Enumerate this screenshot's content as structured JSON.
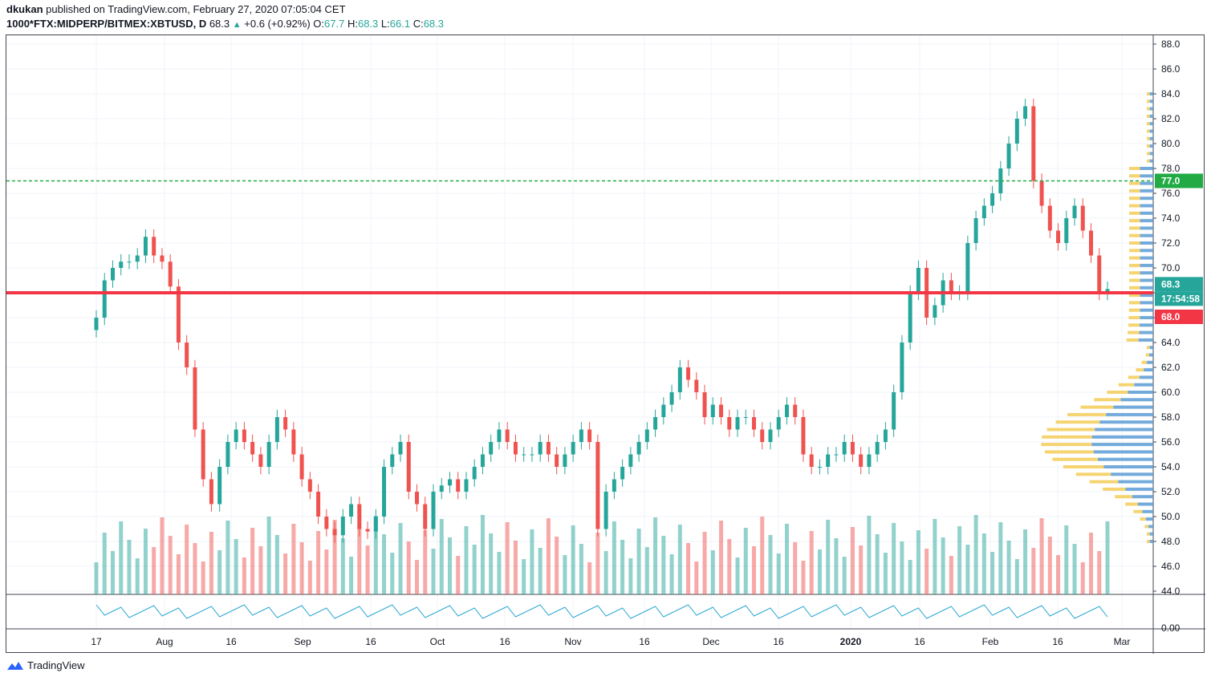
{
  "header": {
    "author": "dkukan",
    "published_text": "published on TradingView.com, February 27, 2020 07:05:04 CET",
    "symbol": "1000*FTX:MIDPERP/BITMEX:XBTUSD, D",
    "last": "68.3",
    "change": "+0.6 (+0.92%)",
    "o_label": "O:",
    "o_value": "67.7",
    "h_label": "H:",
    "h_value": "68.3",
    "l_label": "L:",
    "l_value": "66.1",
    "c_label": "C:",
    "c_value": "68.3"
  },
  "chart_data": {
    "type": "candlestick",
    "title": "",
    "ylim": [
      43,
      89
    ],
    "price_ticks": [
      "88.0",
      "86.0",
      "84.0",
      "82.0",
      "80.0",
      "78.0",
      "76.0",
      "74.0",
      "72.0",
      "70.0",
      "68.0",
      "66.0",
      "64.0",
      "62.0",
      "60.0",
      "58.0",
      "56.0",
      "54.0",
      "52.0",
      "50.0",
      "48.0",
      "46.0",
      "44.0"
    ],
    "indicator_ticks": [
      "0.00"
    ],
    "x_labels": [
      "17",
      "Aug",
      "16",
      "Sep",
      "16",
      "Oct",
      "16",
      "Nov",
      "16",
      "Dec",
      "16",
      "2020",
      "16",
      "Feb",
      "16",
      "Mar"
    ],
    "markers": {
      "last_price": "68.3",
      "countdown": "17:54:58",
      "support_level": "68.0",
      "resistance_level": "77.0"
    },
    "support_line": 68.0,
    "resistance_line": 77.0,
    "close_series": [
      66,
      69,
      70,
      70.5,
      70.5,
      71,
      72.5,
      71,
      70.5,
      68.5,
      64,
      62,
      57,
      53,
      51,
      54,
      56,
      57,
      56,
      55,
      54,
      56,
      58,
      57,
      55,
      53,
      52,
      50,
      49,
      48.5,
      50,
      51,
      49,
      48.8,
      50,
      54,
      55,
      56,
      52,
      51,
      49,
      52,
      52.5,
      53,
      52,
      53,
      54,
      55,
      56,
      57,
      56,
      55,
      55,
      55,
      56,
      55,
      54,
      55,
      56,
      57,
      56,
      49,
      52,
      53,
      54,
      55,
      56,
      57,
      58,
      59,
      60,
      62,
      61,
      60,
      58,
      59,
      58,
      57,
      58,
      58,
      57,
      56,
      57,
      58,
      59,
      58,
      55,
      54,
      54,
      55,
      55,
      56,
      55,
      54,
      55,
      56,
      57,
      60,
      64,
      68,
      70,
      66,
      67,
      69,
      68,
      68,
      72,
      74,
      75,
      76,
      78,
      80,
      82,
      83,
      77,
      75,
      73,
      72,
      74,
      75,
      73,
      71,
      68,
      68.3
    ]
  },
  "footer": {
    "brand": "TradingView"
  }
}
